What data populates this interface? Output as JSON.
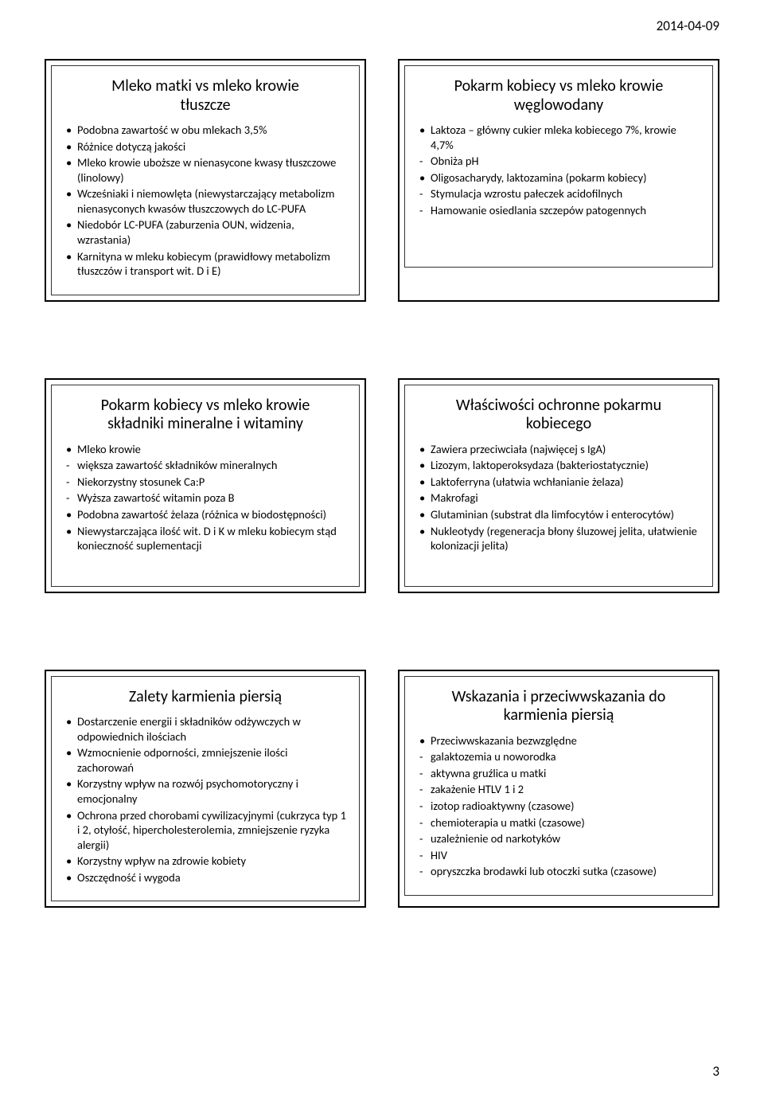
{
  "date": "2014-04-09",
  "page_number": "3",
  "cards": [
    {
      "title_lines": [
        "Mleko matki vs mleko krowie",
        "tłuszcze"
      ],
      "items": [
        {
          "marker": "bullet",
          "text": "Podobna zawartość w obu mlekach 3,5%"
        },
        {
          "marker": "bullet",
          "text": "Różnice dotyczą jakości"
        },
        {
          "marker": "bullet",
          "text": "Mleko krowie uboższe w nienasycone kwasy tłuszczowe (linolowy)"
        },
        {
          "marker": "bullet",
          "text": "Wcześniaki i niemowlęta (niewystarczający metabolizm nienasyconych kwasów tłuszczowych do LC-PUFA"
        },
        {
          "marker": "bullet",
          "text": "Niedobór LC-PUFA (zaburzenia OUN, widzenia, wzrastania)"
        },
        {
          "marker": "bullet",
          "text": "Karnityna w mleku kobiecym (prawidłowy metabolizm tłuszczów i transport wit. D i E)"
        }
      ]
    },
    {
      "title_lines": [
        "Pokarm kobiecy vs mleko krowie",
        "węglowodany"
      ],
      "items": [
        {
          "marker": "bullet",
          "text": "Laktoza – główny cukier mleka kobiecego 7%, krowie 4,7%"
        },
        {
          "marker": "dash",
          "text": "Obniża pH"
        },
        {
          "marker": "bullet",
          "text": "Oligosacharydy, laktozamina (pokarm kobiecy)"
        },
        {
          "marker": "dash",
          "text": "Stymulacja wzrostu pałeczek acidofilnych"
        },
        {
          "marker": "dash",
          "text": "Hamowanie osiedlania szczepów patogennych"
        }
      ]
    },
    {
      "title_lines": [
        "Pokarm kobiecy vs mleko krowie",
        "składniki mineralne i witaminy"
      ],
      "items": [
        {
          "marker": "bullet",
          "text": "Mleko krowie"
        },
        {
          "marker": "dash",
          "text": "większa zawartość składników mineralnych"
        },
        {
          "marker": "dash",
          "text": "Niekorzystny stosunek Ca:P"
        },
        {
          "marker": "dash",
          "text": "Wyższa zawartość witamin poza B"
        },
        {
          "marker": "bullet",
          "text": "Podobna zawartość żelaza (różnica w biodostępności)"
        },
        {
          "marker": "bullet",
          "text": "Niewystarczająca ilość wit. D i K w mleku kobiecym stąd konieczność suplementacji"
        }
      ]
    },
    {
      "title_lines": [
        "Właściwości ochronne pokarmu",
        "kobiecego"
      ],
      "items": [
        {
          "marker": "bullet",
          "text": "Zawiera przeciwciała (najwięcej s IgA)"
        },
        {
          "marker": "bullet",
          "text": "Lizozym, laktoperoksydaza (bakteriostatycznie)"
        },
        {
          "marker": "bullet",
          "text": "Laktoferryna (ułatwia wchłanianie żelaza)"
        },
        {
          "marker": "bullet",
          "text": "Makrofagi"
        },
        {
          "marker": "bullet",
          "text": "Glutaminian (substrat dla limfocytów i enterocytów)"
        },
        {
          "marker": "bullet",
          "text": "Nukleotydy (regeneracja błony śluzowej jelita, ułatwienie kolonizacji jelita)"
        }
      ]
    },
    {
      "title_lines": [
        "Zalety karmienia piersią"
      ],
      "items": [
        {
          "marker": "bullet",
          "text": "Dostarczenie energii i składników odżywczych w odpowiednich ilościach"
        },
        {
          "marker": "bullet",
          "text": "Wzmocnienie odporności, zmniejszenie ilości zachorowań"
        },
        {
          "marker": "bullet",
          "text": "Korzystny wpływ na rozwój psychomotoryczny i emocjonalny"
        },
        {
          "marker": "bullet",
          "text": "Ochrona przed chorobami cywilizacyjnymi (cukrzyca typ 1 i 2, otyłość, hipercholesterolemia, zmniejszenie ryzyka alergii)"
        },
        {
          "marker": "bullet",
          "text": "Korzystny wpływ na zdrowie kobiety"
        },
        {
          "marker": "bullet",
          "text": "Oszczędność i wygoda"
        }
      ]
    },
    {
      "title_lines": [
        "Wskazania i przeciwwskazania do",
        "karmienia piersią"
      ],
      "items": [
        {
          "marker": "bullet",
          "text": "Przeciwwskazania bezwzględne"
        },
        {
          "marker": "dash",
          "text": "galaktozemia u noworodka"
        },
        {
          "marker": "dash",
          "text": "aktywna gruźlica u matki"
        },
        {
          "marker": "dash",
          "text": "zakażenie HTLV 1 i 2"
        },
        {
          "marker": "dash",
          "text": "izotop radioaktywny (czasowe)"
        },
        {
          "marker": "dash",
          "text": "chemioterapia u matki (czasowe)"
        },
        {
          "marker": "dash",
          "text": "uzależnienie od narkotyków"
        },
        {
          "marker": "dash",
          "text": "HIV"
        },
        {
          "marker": "dash",
          "text": "opryszczka brodawki lub otoczki sutka (czasowe)"
        }
      ]
    }
  ]
}
